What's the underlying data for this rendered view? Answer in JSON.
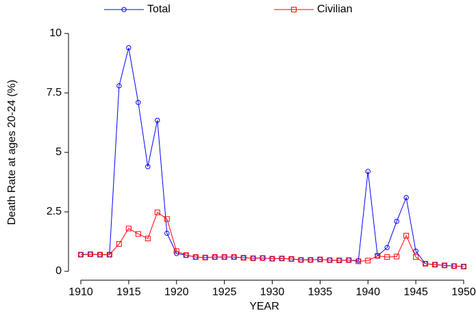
{
  "chart_data": {
    "type": "line",
    "xlabel": "YEAR",
    "ylabel": "Death Rate at ages 20-24 (%)",
    "x": [
      1910,
      1911,
      1912,
      1913,
      1914,
      1915,
      1916,
      1917,
      1918,
      1919,
      1920,
      1921,
      1922,
      1923,
      1924,
      1925,
      1926,
      1927,
      1928,
      1929,
      1930,
      1931,
      1932,
      1933,
      1934,
      1935,
      1936,
      1937,
      1938,
      1939,
      1940,
      1941,
      1942,
      1943,
      1944,
      1945,
      1946,
      1947,
      1948,
      1949,
      1950
    ],
    "series": [
      {
        "name": "Total",
        "color": "#0000ff",
        "marker": "circle",
        "values": [
          0.7,
          0.72,
          0.7,
          0.7,
          7.8,
          9.4,
          7.1,
          4.4,
          6.35,
          1.6,
          0.75,
          0.68,
          0.6,
          0.58,
          0.6,
          0.6,
          0.6,
          0.57,
          0.55,
          0.56,
          0.53,
          0.54,
          0.52,
          0.48,
          0.48,
          0.5,
          0.47,
          0.46,
          0.47,
          0.45,
          4.2,
          0.65,
          1.0,
          2.1,
          3.1,
          0.85,
          0.32,
          0.28,
          0.25,
          0.22,
          0.2
        ]
      },
      {
        "name": "Civilian",
        "color": "#ff0000",
        "marker": "square",
        "values": [
          0.7,
          0.72,
          0.7,
          0.7,
          1.15,
          1.8,
          1.57,
          1.38,
          2.48,
          2.2,
          0.85,
          0.68,
          0.6,
          0.58,
          0.6,
          0.6,
          0.6,
          0.57,
          0.55,
          0.56,
          0.53,
          0.54,
          0.52,
          0.48,
          0.48,
          0.5,
          0.47,
          0.46,
          0.47,
          0.42,
          0.45,
          0.65,
          0.6,
          0.62,
          1.5,
          0.6,
          0.32,
          0.28,
          0.25,
          0.22,
          0.2
        ]
      }
    ],
    "xlim": [
      1910,
      1950
    ],
    "xticks": [
      1910,
      1915,
      1920,
      1925,
      1930,
      1935,
      1940,
      1945,
      1950
    ],
    "ylim": [
      0,
      10
    ],
    "yticks": [
      0,
      2.5,
      5,
      7.5,
      10
    ],
    "legend": "top",
    "grid": false
  }
}
